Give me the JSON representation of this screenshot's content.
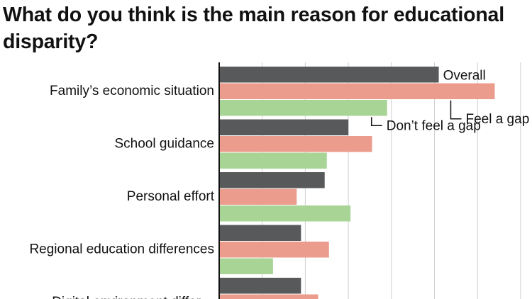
{
  "title": "What do you think is the main reason for educational disparity?",
  "chart_data": {
    "type": "bar",
    "orientation": "horizontal",
    "categories": [
      "Family’s economic situation",
      "School guidance",
      "Personal effort",
      "Regional education differences",
      "Digital environment differ…"
    ],
    "series": [
      {
        "name": "Overall",
        "color": "#58595b",
        "values": [
          51,
          30,
          24.5,
          19,
          19
        ]
      },
      {
        "name": "Feel a gap",
        "color": "#eb9c8c",
        "values": [
          64,
          35.5,
          18,
          25.5,
          23
        ]
      },
      {
        "name": "Don’t feel a gap",
        "color": "#a8d595",
        "values": [
          39,
          25,
          30.5,
          12.5,
          null
        ]
      }
    ],
    "xlim": [
      0,
      75
    ],
    "grid": true,
    "legend": "inline labels beside the first category's bars"
  }
}
